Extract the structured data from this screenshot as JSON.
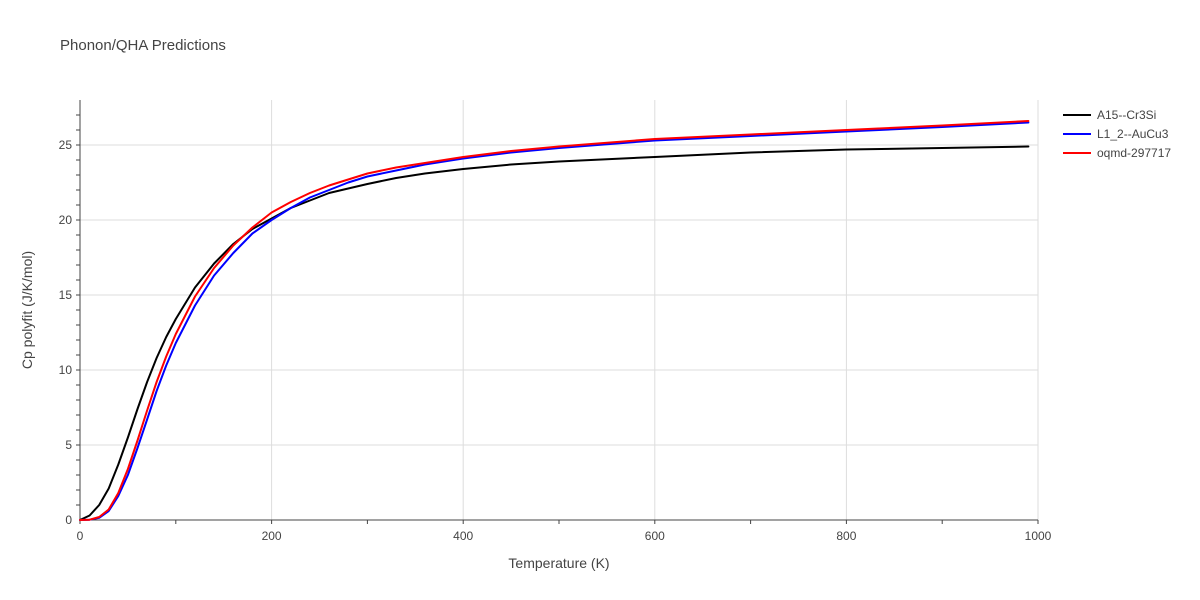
{
  "chart_data": {
    "type": "line",
    "title": "Phonon/QHA Predictions",
    "xlabel": "Temperature (K)",
    "ylabel": "Cp polyfit (J/K/mol)",
    "xlim": [
      0,
      1000
    ],
    "ylim": [
      0,
      28
    ],
    "x_ticks": [
      0,
      200,
      400,
      600,
      800,
      1000
    ],
    "y_ticks": [
      0,
      5,
      10,
      15,
      20,
      25
    ],
    "grid": true,
    "legend_position": "top-right",
    "series": [
      {
        "name": "A15--Cr3Si",
        "color": "#000000",
        "x": [
          0,
          10,
          20,
          30,
          40,
          50,
          60,
          70,
          80,
          90,
          100,
          120,
          140,
          160,
          180,
          200,
          220,
          240,
          260,
          280,
          300,
          330,
          360,
          400,
          450,
          500,
          600,
          700,
          800,
          900,
          990
        ],
        "y": [
          0,
          0.3,
          1.0,
          2.1,
          3.7,
          5.5,
          7.4,
          9.2,
          10.8,
          12.2,
          13.4,
          15.5,
          17.1,
          18.4,
          19.4,
          20.1,
          20.8,
          21.3,
          21.8,
          22.1,
          22.4,
          22.8,
          23.1,
          23.4,
          23.7,
          23.9,
          24.2,
          24.5,
          24.7,
          24.8,
          24.9
        ]
      },
      {
        "name": "L1_2--AuCu3",
        "color": "#0000ff",
        "x": [
          0,
          10,
          20,
          30,
          40,
          50,
          60,
          70,
          80,
          90,
          100,
          120,
          140,
          160,
          180,
          200,
          220,
          240,
          260,
          280,
          300,
          330,
          360,
          400,
          450,
          500,
          600,
          700,
          800,
          900,
          990
        ],
        "y": [
          0,
          0.02,
          0.15,
          0.6,
          1.6,
          3.0,
          4.8,
          6.7,
          8.6,
          10.3,
          11.8,
          14.3,
          16.3,
          17.8,
          19.1,
          20.0,
          20.8,
          21.5,
          22.0,
          22.5,
          22.9,
          23.3,
          23.7,
          24.1,
          24.5,
          24.8,
          25.3,
          25.6,
          25.9,
          26.2,
          26.5
        ]
      },
      {
        "name": "oqmd-297717",
        "color": "#ff0000",
        "x": [
          0,
          10,
          20,
          30,
          40,
          50,
          60,
          70,
          80,
          90,
          100,
          120,
          140,
          160,
          180,
          200,
          220,
          240,
          260,
          280,
          300,
          330,
          360,
          400,
          450,
          500,
          600,
          700,
          800,
          900,
          990
        ],
        "y": [
          0,
          0.02,
          0.2,
          0.7,
          1.8,
          3.4,
          5.3,
          7.3,
          9.2,
          10.9,
          12.4,
          14.9,
          16.8,
          18.3,
          19.5,
          20.5,
          21.2,
          21.8,
          22.3,
          22.7,
          23.1,
          23.5,
          23.8,
          24.2,
          24.6,
          24.9,
          25.4,
          25.7,
          26.0,
          26.3,
          26.6
        ]
      }
    ]
  }
}
